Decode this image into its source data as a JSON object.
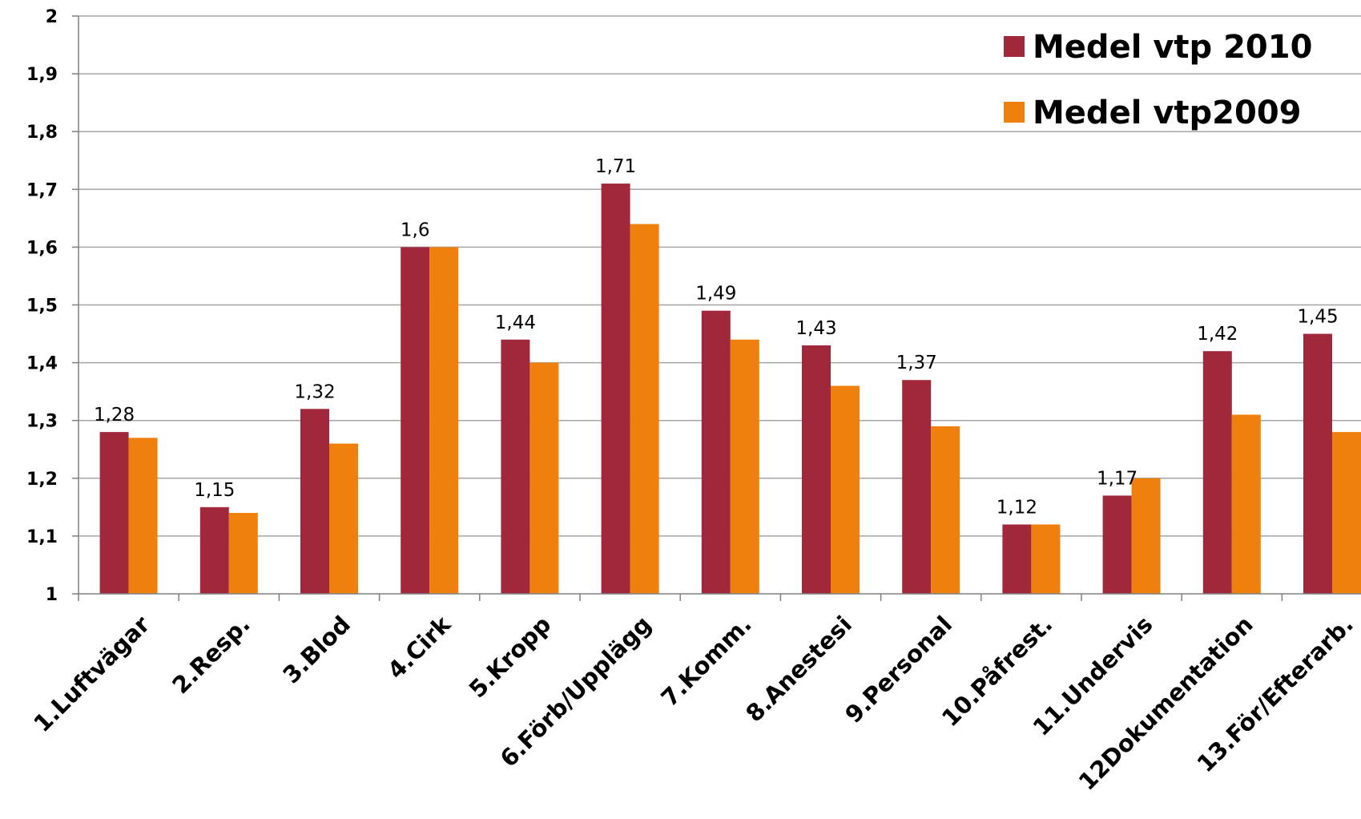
{
  "chart_data": {
    "type": "bar",
    "title": "",
    "xlabel": "",
    "ylabel": "",
    "ylim": [
      1,
      2
    ],
    "yticks": [
      "1",
      "1,1",
      "1,2",
      "1,3",
      "1,4",
      "1,5",
      "1,6",
      "1,7",
      "1,8",
      "1,9",
      "2"
    ],
    "grid": true,
    "legend_position": "top-right",
    "categories": [
      "1.Luftvägar",
      "2.Resp.",
      "3.Blod",
      "4.Cirk",
      "5.Kropp",
      "6.Förb/Upplägg",
      "7.Komm.",
      "8.Anestesi",
      "9.Personal",
      "10.Påfrest.",
      "11.Undervis",
      "12Dokumentation",
      "13.För/Efterarb."
    ],
    "series": [
      {
        "name": "Medel vtp 2010",
        "color": "#a0283a",
        "values": [
          1.28,
          1.15,
          1.32,
          1.6,
          1.44,
          1.71,
          1.49,
          1.43,
          1.37,
          1.12,
          1.17,
          1.42,
          1.45
        ],
        "data_labels": [
          "1,28",
          "1,15",
          "1,32",
          "1,6",
          "1,44",
          "1,71",
          "1,49",
          "1,43",
          "1,37",
          "1,12",
          "1,17",
          "1,42",
          "1,45"
        ]
      },
      {
        "name": "Medel vtp2009",
        "color": "#f0800e",
        "values": [
          1.27,
          1.14,
          1.26,
          1.6,
          1.4,
          1.64,
          1.44,
          1.36,
          1.29,
          1.12,
          1.2,
          1.31,
          1.28
        ]
      }
    ],
    "gridline_color": "#a6a6a6",
    "axis_color": "#808080"
  }
}
